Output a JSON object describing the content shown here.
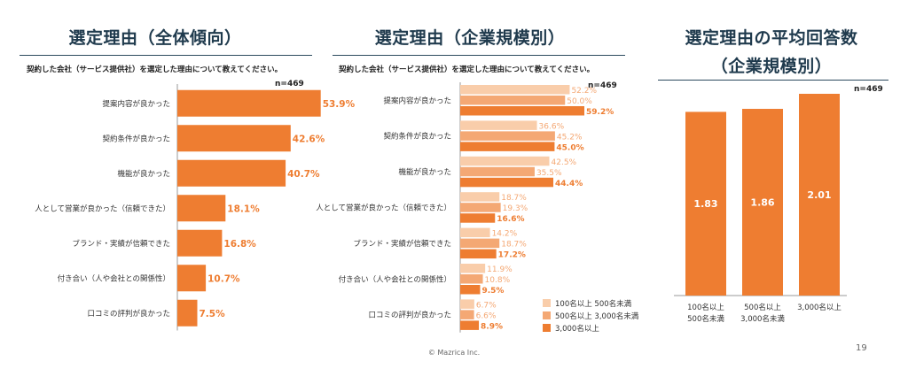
{
  "panels": [
    {
      "title": "選定理由（全体傾向）",
      "subtitle": "契約した会社（サービス提供社）を選定した理由について教えてください。",
      "n": "n=469"
    },
    {
      "title": "選定理由（企業規模別）",
      "subtitle": "契約した会社（サービス提供社）を選定した理由について教えてください。",
      "n": "n=469"
    },
    {
      "title_line1": "選定理由の平均回答数",
      "title_line2": "（企業規模別）",
      "n": "n=469"
    }
  ],
  "footer": "© Mazrica Inc.",
  "page_number": "19",
  "colors": {
    "dark": "#ee7d31",
    "medium": "#f4a874",
    "light": "#f9cdaa",
    "title": "#1f3a4d",
    "axis": "#999999"
  },
  "chart_data": [
    {
      "type": "bar",
      "orientation": "horizontal",
      "categories": [
        "提案内容が良かった",
        "契約条件が良かった",
        "機能が良かった",
        "人として営業が良かった（信頼できた）",
        "ブランド・実績が信頼できた",
        "付き合い（人や会社との関係性）",
        "口コミの評判が良かった"
      ],
      "values": [
        53.9,
        42.6,
        40.7,
        18.1,
        16.8,
        10.7,
        7.5
      ],
      "value_labels": [
        "53.9%",
        "42.6%",
        "40.7%",
        "18.1%",
        "16.8%",
        "10.7%",
        "7.5%"
      ],
      "xlim": [
        0,
        100
      ]
    },
    {
      "type": "bar",
      "orientation": "horizontal",
      "categories": [
        "提案内容が良かった",
        "契約条件が良かった",
        "機能が良かった",
        "人として営業が良かった（信頼できた）",
        "ブランド・実績が信頼できた",
        "付き合い（人や会社との関係性）",
        "口コミの評判が良かった"
      ],
      "series": [
        {
          "name": "100名以上 500名未満",
          "values": [
            52.2,
            36.6,
            42.5,
            18.7,
            14.2,
            11.9,
            6.7
          ],
          "labels": [
            "52.2%",
            "36.6%",
            "42.5%",
            "18.7%",
            "14.2%",
            "11.9%",
            "6.7%"
          ]
        },
        {
          "name": "500名以上 3,000名未満",
          "values": [
            50.0,
            45.2,
            35.5,
            19.3,
            18.7,
            10.8,
            6.6
          ],
          "labels": [
            "50.0%",
            "45.2%",
            "35.5%",
            "19.3%",
            "18.7%",
            "10.8%",
            "6.6%"
          ]
        },
        {
          "name": "3,000名以上",
          "values": [
            59.2,
            45.0,
            44.4,
            16.6,
            17.2,
            9.5,
            8.9
          ],
          "labels": [
            "59.2%",
            "45.0%",
            "44.4%",
            "16.6%",
            "17.2%",
            "9.5%",
            "8.9%"
          ]
        }
      ],
      "legend": "bottom-right",
      "xlim": [
        0,
        100
      ]
    },
    {
      "type": "bar",
      "orientation": "vertical",
      "categories": [
        [
          "100名以上",
          "500名未満"
        ],
        [
          "500名以上",
          "3,000名未満"
        ],
        [
          "3,000名以上"
        ]
      ],
      "values": [
        1.83,
        1.86,
        2.01
      ],
      "value_labels": [
        "1.83",
        "1.86",
        "2.01"
      ],
      "ylim": [
        0,
        2.4
      ]
    }
  ]
}
